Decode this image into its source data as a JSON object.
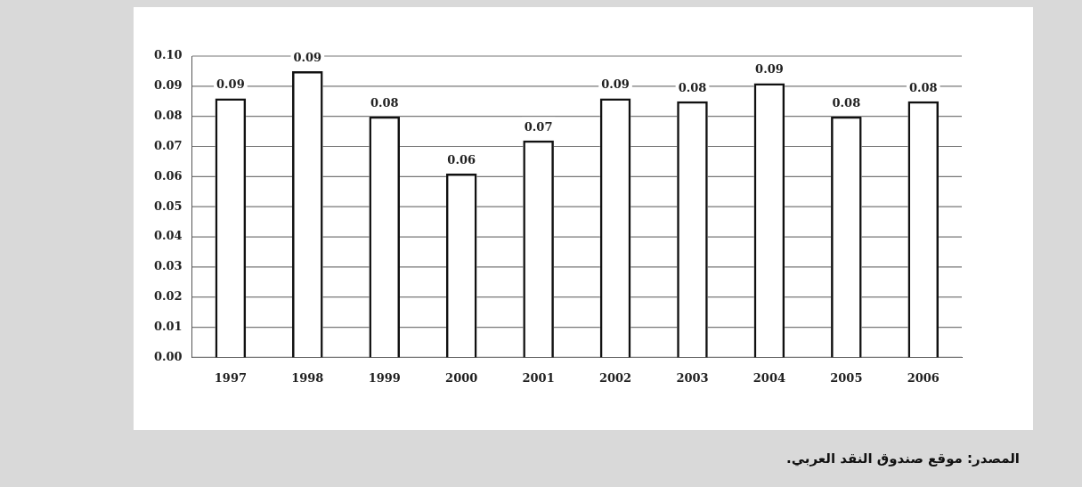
{
  "chart_data": {
    "type": "bar",
    "categories": [
      "1997",
      "1998",
      "1999",
      "2000",
      "2001",
      "2002",
      "2003",
      "2004",
      "2005",
      "2006"
    ],
    "values": [
      0.086,
      0.095,
      0.08,
      0.061,
      0.072,
      0.086,
      0.085,
      0.091,
      0.08,
      0.085
    ],
    "value_labels": [
      "0.09",
      "0.09",
      "0.08",
      "0.06",
      "0.07",
      "0.09",
      "0.08",
      "0.09",
      "0.08",
      "0.08"
    ],
    "color": "#111111",
    "ylim": [
      0,
      0.1
    ],
    "yticks": [
      {
        "value": 0,
        "label": "0.00"
      },
      0.01,
      0.02,
      0.03,
      0.04,
      0.05,
      0.06,
      0.07,
      0.08,
      0.09,
      {
        "value": 0.1,
        "label": "0.10"
      }
    ],
    "grid": "y",
    "annotations": [
      "المصدر: موقع صندوق النقد العربي."
    ]
  }
}
